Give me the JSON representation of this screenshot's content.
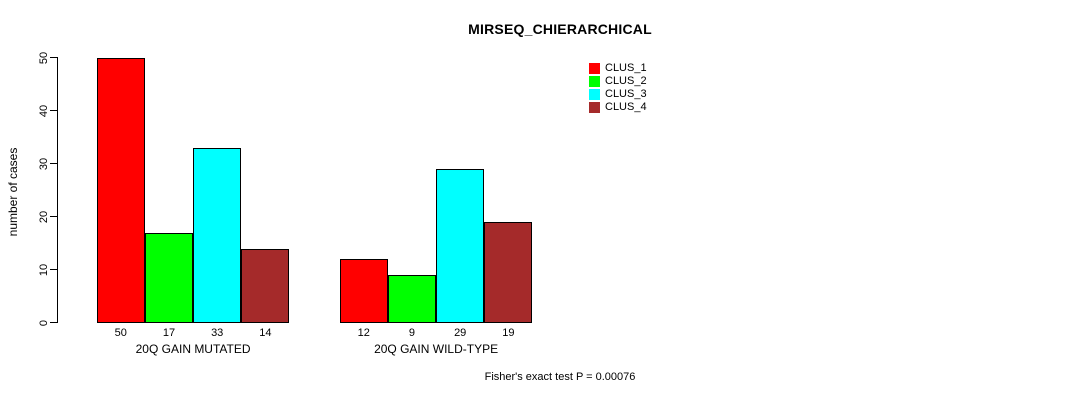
{
  "title": "MIRSEQ_CHIERARCHICAL",
  "y_axis": {
    "label": "number of cases"
  },
  "footnote": "Fisher's exact test P = 0.00076",
  "chart_data": {
    "type": "bar",
    "title": "MIRSEQ_CHIERARCHICAL",
    "categories": [
      "20Q GAIN MUTATED",
      "20Q GAIN WILD-TYPE"
    ],
    "series": [
      {
        "name": "CLUS_1",
        "color": "#FF0000",
        "values": [
          50,
          12
        ]
      },
      {
        "name": "CLUS_2",
        "color": "#00FF00",
        "values": [
          17,
          9
        ]
      },
      {
        "name": "CLUS_3",
        "color": "#00FFFF",
        "values": [
          33,
          29
        ]
      },
      {
        "name": "CLUS_4",
        "color": "#A52A2A",
        "values": [
          14,
          19
        ]
      }
    ],
    "bar_value_labels": [
      [
        50,
        17,
        33,
        14
      ],
      [
        12,
        9,
        29,
        19
      ]
    ],
    "xlabel": "",
    "ylabel": "number of cases",
    "ylim": [
      0,
      50
    ],
    "yticks": [
      0,
      10,
      20,
      30,
      40,
      50
    ],
    "grid": false,
    "legend_entries": [
      "CLUS_1",
      "CLUS_2",
      "CLUS_3",
      "CLUS_4"
    ],
    "legend_position": "top-right",
    "annotation": "Fisher's exact test P = 0.00076"
  }
}
